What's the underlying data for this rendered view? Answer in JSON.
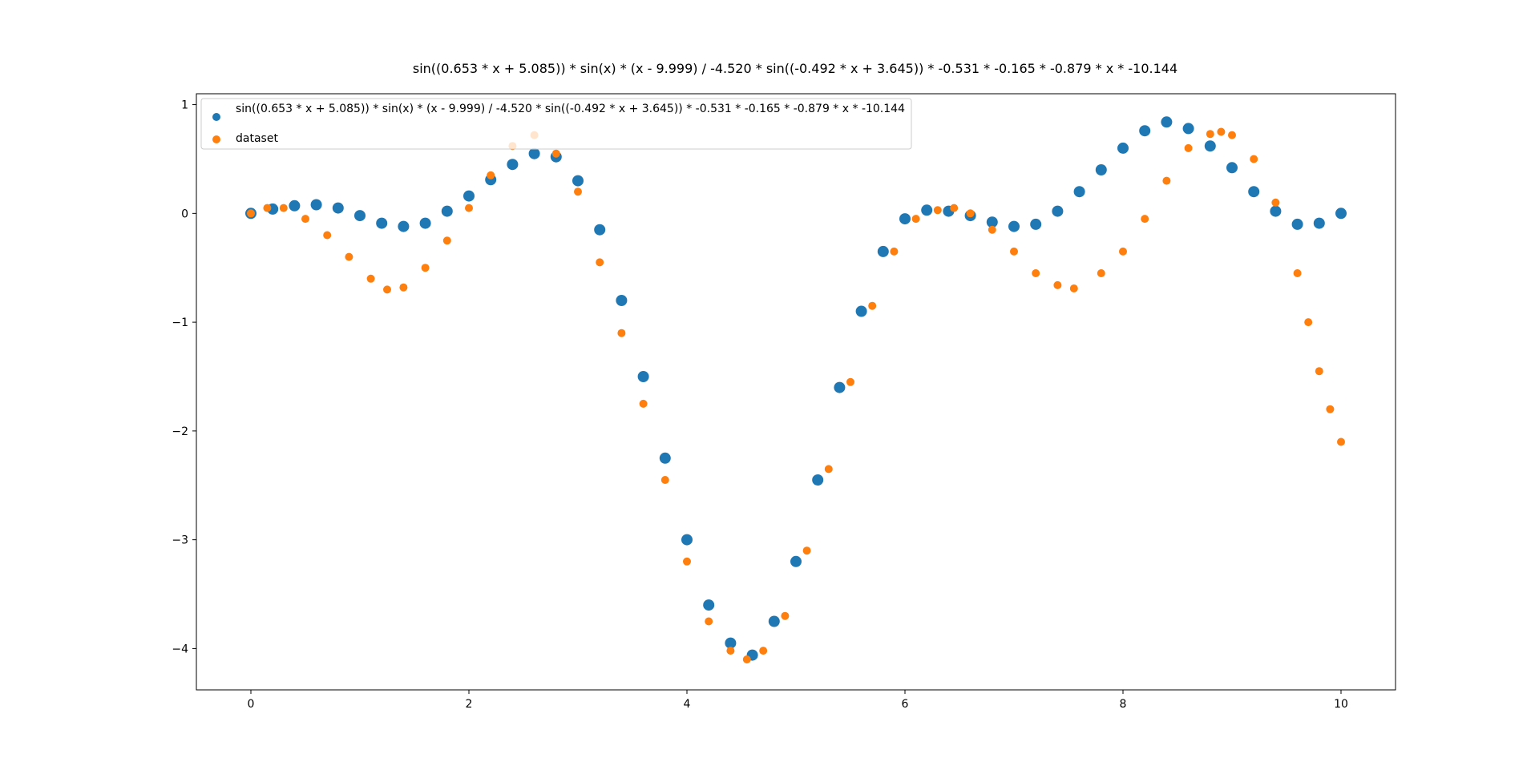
{
  "chart_data": {
    "type": "scatter",
    "title": "sin((0.653 * x + 5.085)) * sin(x) * (x - 9.999) / -4.520 * sin((-0.492 * x + 3.645)) * -0.531 * -0.165 * -0.879 * x * -10.144",
    "xlabel": "",
    "ylabel": "",
    "xlim": [
      -0.5,
      10.5
    ],
    "ylim": [
      -4.38,
      1.1
    ],
    "xticks": [
      0,
      2,
      4,
      6,
      8,
      10
    ],
    "yticks": [
      1,
      0,
      -1,
      -2,
      -3,
      -4
    ],
    "grid": false,
    "legend_position": "top-left",
    "series": [
      {
        "name": "sin((0.653 * x + 5.085)) * sin(x) * (x - 9.999) / -4.520 * sin((-0.492 * x + 3.645)) * -0.531 * -0.165 * -0.879 * x * -10.144",
        "color": "#1f77b4",
        "x": [
          0.0,
          0.2,
          0.4,
          0.6,
          0.8,
          1.0,
          1.2,
          1.4,
          1.6,
          1.8,
          2.0,
          2.2,
          2.4,
          2.6,
          2.8,
          3.0,
          3.2,
          3.4,
          3.6,
          3.8,
          4.0,
          4.2,
          4.4,
          4.6,
          4.8,
          5.0,
          5.2,
          5.4,
          5.6,
          5.8,
          6.0,
          6.2,
          6.4,
          6.6,
          6.8,
          7.0,
          7.2,
          7.4,
          7.6,
          7.8,
          8.0,
          8.2,
          8.4,
          8.6,
          8.8,
          9.0,
          9.2,
          9.4,
          9.6,
          9.8,
          10.0
        ],
        "y": [
          0.0,
          0.04,
          0.07,
          0.08,
          0.05,
          -0.02,
          -0.09,
          -0.12,
          -0.09,
          0.02,
          0.16,
          0.31,
          0.45,
          0.55,
          0.52,
          0.3,
          -0.15,
          -0.8,
          -1.5,
          -2.25,
          -3.0,
          -3.6,
          -3.95,
          -4.06,
          -3.75,
          -3.2,
          -2.45,
          -1.6,
          -0.9,
          -0.35,
          -0.05,
          0.03,
          0.02,
          -0.02,
          -0.08,
          -0.12,
          -0.1,
          0.02,
          0.2,
          0.4,
          0.6,
          0.76,
          0.84,
          0.78,
          0.62,
          0.42,
          0.2,
          0.02,
          -0.1,
          -0.09,
          0.0
        ]
      },
      {
        "name": "dataset",
        "color": "#ff7f0e",
        "x": [
          0.0,
          0.15,
          0.3,
          0.5,
          0.7,
          0.9,
          1.1,
          1.25,
          1.4,
          1.6,
          1.8,
          2.0,
          2.2,
          2.4,
          2.6,
          2.8,
          3.0,
          3.2,
          3.4,
          3.6,
          3.8,
          4.0,
          4.2,
          4.4,
          4.55,
          4.7,
          4.9,
          5.1,
          5.3,
          5.5,
          5.7,
          5.9,
          6.1,
          6.3,
          6.45,
          6.6,
          6.8,
          7.0,
          7.2,
          7.4,
          7.55,
          7.8,
          8.0,
          8.2,
          8.4,
          8.6,
          8.8,
          8.9,
          9.0,
          9.2,
          9.4,
          9.6,
          9.7,
          9.8,
          9.9,
          10.0
        ],
        "y": [
          0.0,
          0.05,
          0.05,
          -0.05,
          -0.2,
          -0.4,
          -0.6,
          -0.7,
          -0.68,
          -0.5,
          -0.25,
          0.05,
          0.35,
          0.62,
          0.72,
          0.55,
          0.2,
          -0.45,
          -1.1,
          -1.75,
          -2.45,
          -3.2,
          -3.75,
          -4.02,
          -4.1,
          -4.02,
          -3.7,
          -3.1,
          -2.35,
          -1.55,
          -0.85,
          -0.35,
          -0.05,
          0.03,
          0.05,
          0.0,
          -0.15,
          -0.35,
          -0.55,
          -0.66,
          -0.69,
          -0.55,
          -0.35,
          -0.05,
          0.3,
          0.6,
          0.73,
          0.75,
          0.72,
          0.5,
          0.1,
          -0.55,
          -1.0,
          -1.45,
          -1.8,
          -2.1
        ]
      }
    ]
  }
}
